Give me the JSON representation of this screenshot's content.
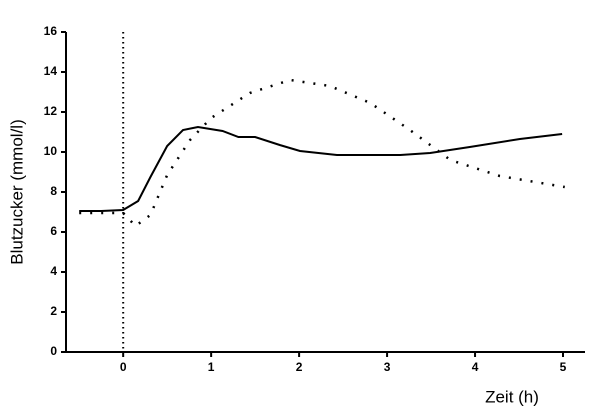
{
  "chart_data": {
    "type": "line",
    "xlabel": "Zeit (h)",
    "ylabel": "Blutzucker (mmol/l)",
    "xlim": [
      -0.65,
      5.25
    ],
    "xticks": [
      0,
      1,
      2,
      3,
      4,
      5
    ],
    "ylim": [
      0,
      16
    ],
    "yticks": [
      0,
      2,
      4,
      6,
      8,
      10,
      12,
      14,
      16
    ],
    "vline": 0,
    "series": [
      {
        "color": "#000000",
        "style": "solid",
        "x": [
          -0.5,
          -0.25,
          0,
          0.17,
          0.31,
          0.5,
          0.68,
          0.85,
          1.13,
          1.31,
          1.5,
          1.78,
          2.01,
          2.43,
          3.15,
          3.49,
          3.94,
          4.51,
          4.99
        ],
        "values": [
          7.05,
          7.05,
          7.1,
          7.55,
          8.75,
          10.3,
          11.1,
          11.25,
          11.05,
          10.75,
          10.75,
          10.35,
          10.05,
          9.85,
          9.85,
          9.95,
          10.25,
          10.65,
          10.9
        ]
      },
      {
        "color": "#000000",
        "style": "dotted",
        "x": [
          -0.5,
          0,
          0.14,
          0.31,
          0.5,
          0.76,
          1.0,
          1.44,
          1.9,
          2.35,
          2.81,
          3.26,
          3.72,
          4.28,
          5.02
        ],
        "values": [
          6.95,
          6.95,
          6.3,
          6.85,
          8.85,
          10.6,
          11.7,
          12.95,
          13.6,
          13.3,
          12.45,
          11.1,
          9.6,
          8.8,
          8.25
        ]
      }
    ]
  }
}
